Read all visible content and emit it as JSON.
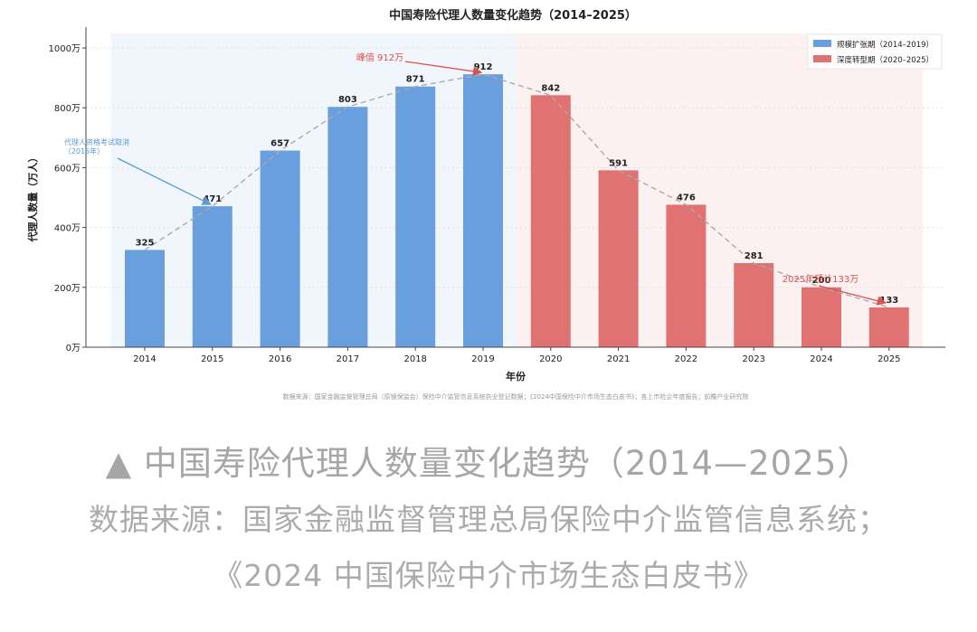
{
  "chart_data": {
    "type": "bar",
    "title": "中国寿险代理人数量变化趋势（2014–2025）",
    "xlabel": "年份",
    "ylabel": "代理人数量（万人）",
    "categories": [
      "2014",
      "2015",
      "2016",
      "2017",
      "2018",
      "2019",
      "2020",
      "2021",
      "2022",
      "2023",
      "2024",
      "2025"
    ],
    "values": [
      325,
      471,
      657,
      803,
      871,
      912,
      842,
      591,
      476,
      281,
      200,
      133
    ],
    "value_labels": [
      "325",
      "471",
      "657",
      "803",
      "871",
      "912",
      "842",
      "591",
      "476",
      "281",
      "200",
      "133"
    ],
    "ylim": [
      0,
      1050
    ],
    "yticks": [
      0,
      200,
      400,
      600,
      800,
      1000
    ],
    "ytick_labels": [
      "0万",
      "200万",
      "400万",
      "600万",
      "800万",
      "1000万"
    ],
    "trend_line": true,
    "grid": "y-dotted",
    "legend_position": "top-right",
    "periods": [
      {
        "name": "规模扩张期（2014–2019）",
        "years": [
          "2014",
          "2019"
        ],
        "bar_color": "#6a9fdd",
        "band_color": "#f1f6fc"
      },
      {
        "name": "深度转型期（2020–2025）",
        "years": [
          "2020",
          "2025"
        ],
        "bar_color": "#e07272",
        "band_color": "#fcf1f1"
      }
    ],
    "annotations": [
      {
        "text": "峰值 912万",
        "target": "2019",
        "color": "#d9534f"
      },
      {
        "text": "代理人资格考试取消",
        "text2": "（2015年）",
        "target": "2015",
        "color": "#5b9bd5"
      },
      {
        "text": "2025年预计133万",
        "target": "2025",
        "color": "#d9534f"
      }
    ],
    "source_note": "数据来源：国家金融监督管理总局（原银保监会）保险中介监管信息系统执业登记数据；《2024中国保险中介市场生态白皮书》；各上市险企年度报告；前瞻产业研究院"
  },
  "caption": {
    "title": "▲ 中国寿险代理人数量变化趋势（2014—2025）",
    "source_line1": "数据来源：国家金融监督管理总局保险中介监管信息系统；",
    "source_line2": "《2024 中国保险中介市场生态白皮书》"
  }
}
